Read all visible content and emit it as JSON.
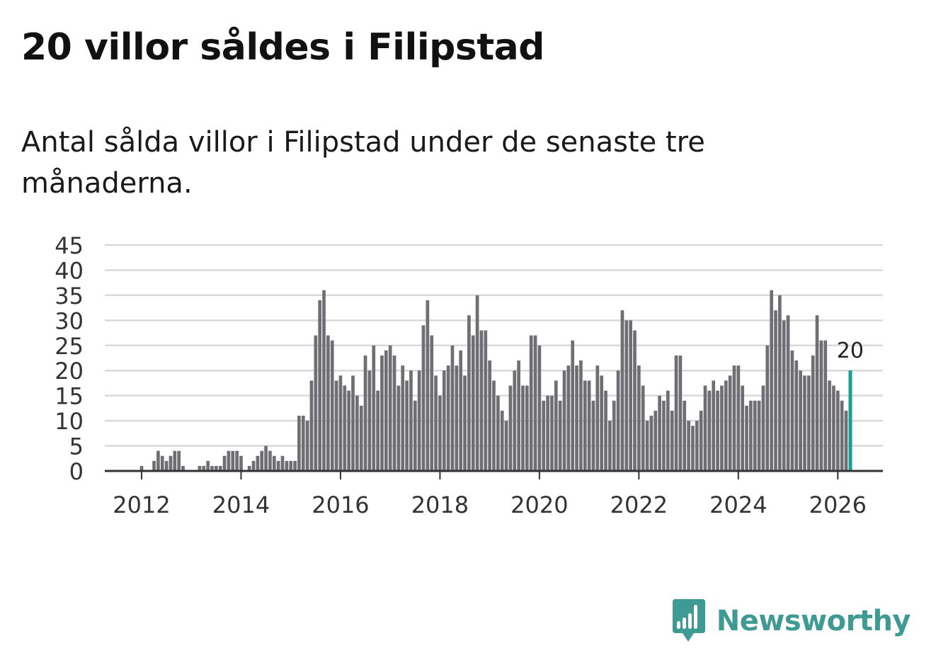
{
  "title": "20 villor såldes i Filipstad",
  "subtitle": "Antal sålda villor i Filipstad under de senaste tre månaderna.",
  "brand": {
    "name": "Newsworthy",
    "logo_icon": "bar-chart-speech-bubble-icon"
  },
  "colors": {
    "bar": "#6f6e73",
    "highlight": "#16a093",
    "grid": "#d9d9d9",
    "axis": "#333333",
    "brand": "#3f9a94"
  },
  "chart_data": {
    "type": "bar",
    "title": "20 villor såldes i Filipstad",
    "xlabel": "",
    "ylabel": "",
    "ylim": [
      0,
      45
    ],
    "yticks": [
      0,
      5,
      10,
      15,
      20,
      25,
      30,
      35,
      40,
      45
    ],
    "xticks": [
      "2012",
      "2014",
      "2016",
      "2018",
      "2020",
      "2022",
      "2024",
      "2026"
    ],
    "start": "2011-02",
    "grid": true,
    "highlight_label": "20",
    "values": [
      0,
      0,
      0,
      0,
      0,
      0,
      0,
      0,
      0,
      0,
      0,
      1,
      0,
      0,
      2,
      4,
      3,
      2,
      3,
      4,
      4,
      1,
      0,
      0,
      0,
      1,
      1,
      2,
      1,
      1,
      1,
      3,
      4,
      4,
      4,
      3,
      0,
      1,
      2,
      3,
      4,
      5,
      4,
      3,
      2,
      3,
      2,
      2,
      2,
      11,
      11,
      10,
      18,
      27,
      34,
      36,
      27,
      26,
      18,
      19,
      17,
      16,
      19,
      15,
      13,
      23,
      20,
      25,
      16,
      23,
      24,
      25,
      23,
      17,
      21,
      18,
      20,
      14,
      20,
      29,
      34,
      27,
      19,
      15,
      20,
      21,
      25,
      21,
      24,
      19,
      31,
      27,
      35,
      28,
      28,
      22,
      18,
      15,
      12,
      10,
      17,
      20,
      22,
      17,
      17,
      27,
      27,
      25,
      14,
      15,
      15,
      18,
      14,
      20,
      21,
      26,
      21,
      22,
      18,
      18,
      14,
      21,
      19,
      16,
      10,
      14,
      20,
      32,
      30,
      30,
      28,
      21,
      17,
      10,
      11,
      12,
      15,
      14,
      16,
      12,
      23,
      23,
      14,
      10,
      9,
      10,
      12,
      17,
      16,
      18,
      16,
      17,
      18,
      19,
      21,
      21,
      17,
      13,
      14,
      14,
      14,
      17,
      25,
      36,
      32,
      35,
      30,
      31,
      24,
      22,
      20,
      19,
      19,
      23,
      31,
      26,
      26,
      18,
      17,
      16,
      14,
      12,
      20
    ]
  }
}
